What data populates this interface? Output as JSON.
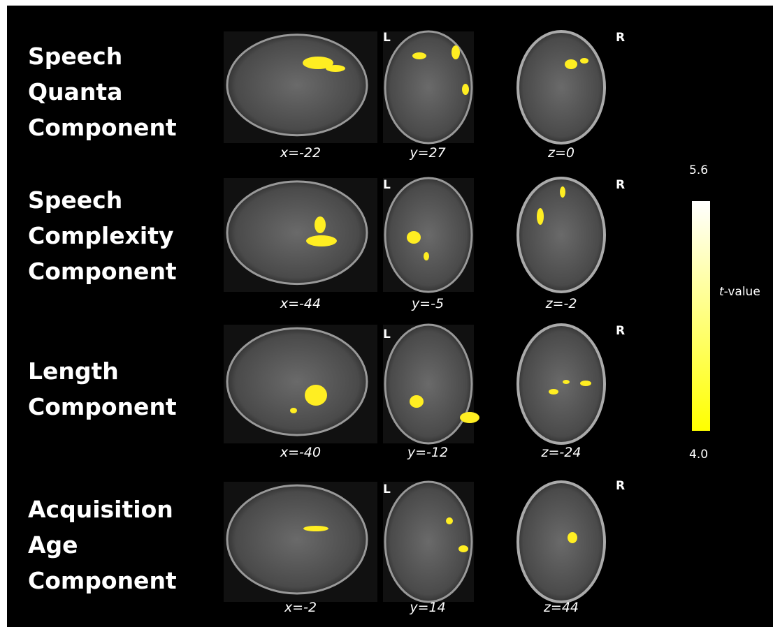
{
  "rows": [
    {
      "label_lines": [
        "Speech",
        "Quanta",
        "Component"
      ],
      "coords": [
        "x=-22",
        "y=27",
        "z=0"
      ]
    },
    {
      "label_lines": [
        "Speech",
        "Complexity",
        "Component"
      ],
      "coords": [
        "x=-44",
        "y=-5",
        "z=-2"
      ]
    },
    {
      "label_lines": [
        "Length",
        "Component"
      ],
      "coords": [
        "x=-40",
        "y=-12",
        "z=-24"
      ]
    },
    {
      "label_lines": [
        "Acquisition",
        "Age",
        "Component"
      ],
      "coords": [
        "x=-2",
        "y=14",
        "z=44"
      ]
    }
  ],
  "orientation": {
    "left": "L",
    "right": "R"
  },
  "colorbar": {
    "max": "5.6",
    "min": "4.0",
    "label_italic": "t",
    "label_rest": "-value"
  }
}
